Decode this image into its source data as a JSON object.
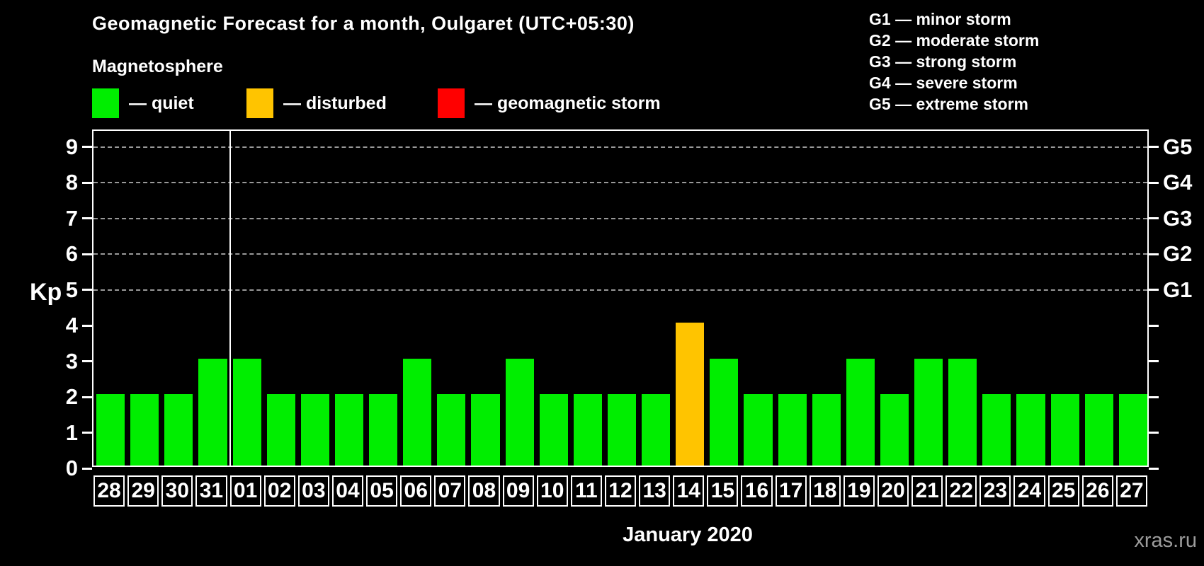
{
  "header": {
    "title": "Geomagnetic Forecast for a month, Oulgaret (UTC+05:30)",
    "subtitle": "Magnetosphere"
  },
  "legend": {
    "items": [
      {
        "name": "quiet",
        "label": "— quiet",
        "color": "#00ee00"
      },
      {
        "name": "disturbed",
        "label": "— disturbed",
        "color": "#ffc400"
      },
      {
        "name": "storm",
        "label": "— geomagnetic storm",
        "color": "#ff0000"
      }
    ]
  },
  "g_legend": {
    "lines": [
      "G1 — minor storm",
      "G2 — moderate storm",
      "G3 — strong storm",
      "G4 — severe storm",
      "G5 — extreme storm"
    ]
  },
  "chart_data": {
    "type": "bar",
    "title": "Geomagnetic Forecast for a month, Oulgaret (UTC+05:30)",
    "xlabel": "January 2020",
    "ylabel": "Kp",
    "ylim": [
      0,
      9
    ],
    "yticks": [
      0,
      1,
      2,
      3,
      4,
      5,
      6,
      7,
      8,
      9
    ],
    "grid_levels": [
      5,
      6,
      7,
      8,
      9
    ],
    "right_axis_labels": [
      {
        "kp": 5,
        "label": "G1"
      },
      {
        "kp": 6,
        "label": "G2"
      },
      {
        "kp": 7,
        "label": "G3"
      },
      {
        "kp": 8,
        "label": "G4"
      },
      {
        "kp": 9,
        "label": "G5"
      }
    ],
    "categories": [
      "28",
      "29",
      "30",
      "31",
      "01",
      "02",
      "03",
      "04",
      "05",
      "06",
      "07",
      "08",
      "09",
      "10",
      "11",
      "12",
      "13",
      "14",
      "15",
      "16",
      "17",
      "18",
      "19",
      "20",
      "21",
      "22",
      "23",
      "24",
      "25",
      "26",
      "27"
    ],
    "values": [
      2,
      2,
      2,
      3,
      3,
      2,
      2,
      2,
      2,
      3,
      2,
      2,
      3,
      2,
      2,
      2,
      2,
      4,
      3,
      2,
      2,
      2,
      3,
      2,
      3,
      3,
      2,
      2,
      2,
      2,
      2
    ],
    "statuses": [
      "quiet",
      "quiet",
      "quiet",
      "quiet",
      "quiet",
      "quiet",
      "quiet",
      "quiet",
      "quiet",
      "quiet",
      "quiet",
      "quiet",
      "quiet",
      "quiet",
      "quiet",
      "quiet",
      "quiet",
      "disturbed",
      "quiet",
      "quiet",
      "quiet",
      "quiet",
      "quiet",
      "quiet",
      "quiet",
      "quiet",
      "quiet",
      "quiet",
      "quiet",
      "quiet",
      "quiet"
    ],
    "status_colors": {
      "quiet": "#00ee00",
      "disturbed": "#ffc400",
      "storm": "#ff0000"
    },
    "month_separator_after_index": 3,
    "legend_position": "top-left"
  },
  "footer": {
    "xaxis_title": "January 2020",
    "watermark": "xras.ru"
  }
}
